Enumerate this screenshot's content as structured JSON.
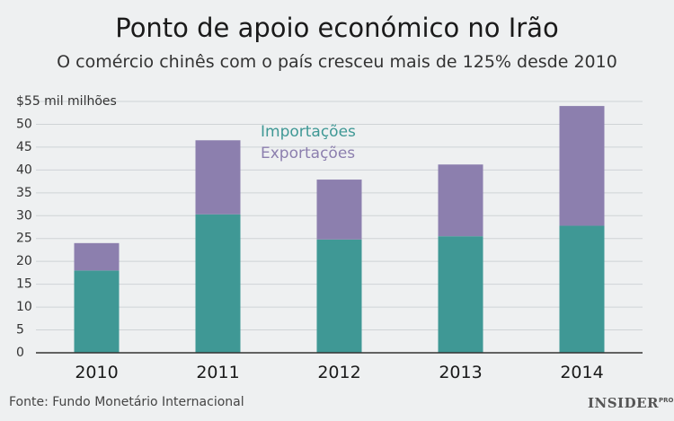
{
  "title": "Ponto de apoio económico no Irão",
  "subtitle": "O comércio chinês com o país cresceu mais de 125% desde 2010",
  "source": "Fonte: Fundo Monetário Internacional",
  "logo": {
    "main": "INSIDER",
    "suffix": "PRO"
  },
  "colors": {
    "imports": "#3f9895",
    "exports": "#8c7fae",
    "background": "#eef0f1",
    "grid": "#cfd3d6"
  },
  "chart_data": {
    "type": "bar",
    "stacked": true,
    "categories": [
      "2010",
      "2011",
      "2012",
      "2013",
      "2014"
    ],
    "series": [
      {
        "name": "Importações",
        "values": [
          18,
          30.3,
          24.8,
          25.5,
          27.8
        ],
        "color": "#3f9895"
      },
      {
        "name": "Exportações",
        "values": [
          6,
          16.2,
          13.1,
          15.7,
          26.2
        ],
        "color": "#8c7fae"
      }
    ],
    "ylim": [
      0,
      55
    ],
    "yticks": [
      0,
      5,
      10,
      15,
      20,
      25,
      30,
      35,
      40,
      45,
      50
    ],
    "top_tick_label": "$55 mil milhões",
    "grid": true,
    "legend": "top-left"
  }
}
